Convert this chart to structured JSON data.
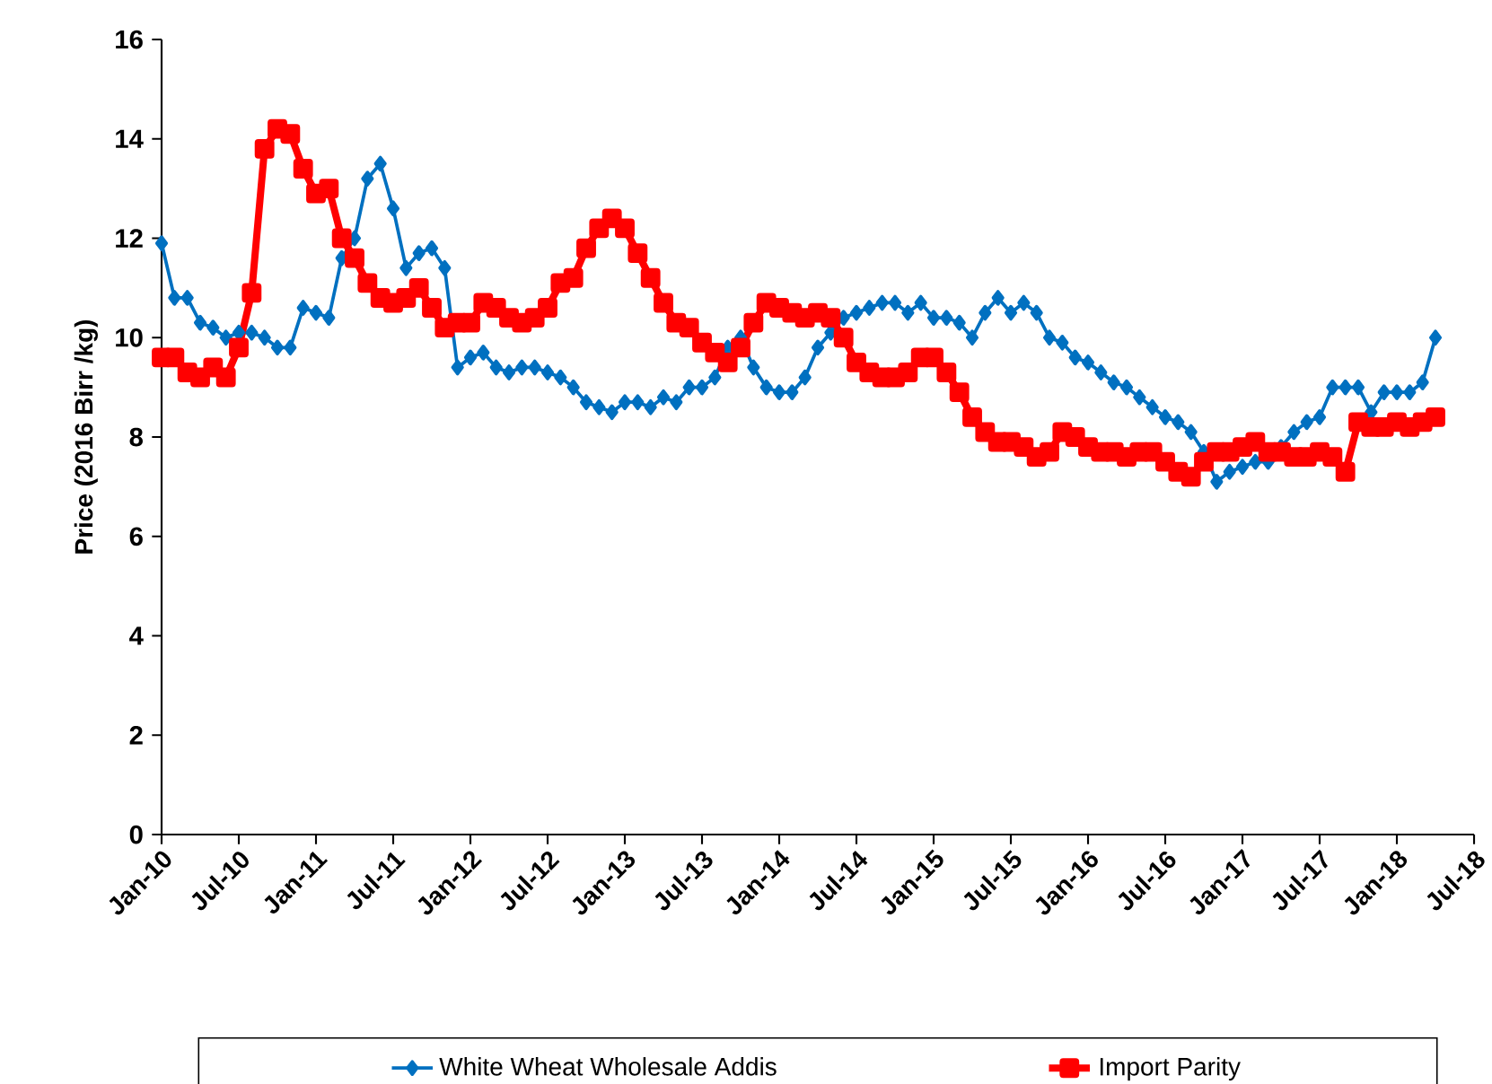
{
  "chart_data": {
    "type": "line",
    "ylabel": "Price (2016 Birr /kg)",
    "x": [
      "2010-01",
      "2010-02",
      "2010-03",
      "2010-04",
      "2010-05",
      "2010-06",
      "2010-07",
      "2010-08",
      "2010-09",
      "2010-10",
      "2010-11",
      "2010-12",
      "2011-01",
      "2011-02",
      "2011-03",
      "2011-04",
      "2011-05",
      "2011-06",
      "2011-07",
      "2011-08",
      "2011-09",
      "2011-10",
      "2011-11",
      "2011-12",
      "2012-01",
      "2012-02",
      "2012-03",
      "2012-04",
      "2012-05",
      "2012-06",
      "2012-07",
      "2012-08",
      "2012-09",
      "2012-10",
      "2012-11",
      "2012-12",
      "2013-01",
      "2013-02",
      "2013-03",
      "2013-04",
      "2013-05",
      "2013-06",
      "2013-07",
      "2013-08",
      "2013-09",
      "2013-10",
      "2013-11",
      "2013-12",
      "2014-01",
      "2014-02",
      "2014-03",
      "2014-04",
      "2014-05",
      "2014-06",
      "2014-07",
      "2014-08",
      "2014-09",
      "2014-10",
      "2014-11",
      "2014-12",
      "2015-01",
      "2015-02",
      "2015-03",
      "2015-04",
      "2015-05",
      "2015-06",
      "2015-07",
      "2015-08",
      "2015-09",
      "2015-10",
      "2015-11",
      "2015-12",
      "2016-01",
      "2016-02",
      "2016-03",
      "2016-04",
      "2016-05",
      "2016-06",
      "2016-07",
      "2016-08",
      "2016-09",
      "2016-10",
      "2016-11",
      "2016-12",
      "2017-01",
      "2017-02",
      "2017-03",
      "2017-04",
      "2017-05",
      "2017-06",
      "2017-07",
      "2017-08",
      "2017-09",
      "2017-10",
      "2017-11",
      "2017-12",
      "2018-01",
      "2018-02",
      "2018-03",
      "2018-04"
    ],
    "series": [
      {
        "name": "White Wheat Wholesale Addis",
        "color": "#0070c0",
        "marker": "diamond",
        "values": [
          11.9,
          10.8,
          10.8,
          10.3,
          10.2,
          10.0,
          10.1,
          10.1,
          10.0,
          9.8,
          9.8,
          10.6,
          10.5,
          10.4,
          11.6,
          12.0,
          13.2,
          13.5,
          12.6,
          11.4,
          11.7,
          11.8,
          11.4,
          9.4,
          9.6,
          9.7,
          9.4,
          9.3,
          9.4,
          9.4,
          9.3,
          9.2,
          9.0,
          8.7,
          8.6,
          8.5,
          8.7,
          8.7,
          8.6,
          8.8,
          8.7,
          9.0,
          9.0,
          9.2,
          9.8,
          10.0,
          9.4,
          9.0,
          8.9,
          8.9,
          9.2,
          9.8,
          10.1,
          10.4,
          10.5,
          10.6,
          10.7,
          10.7,
          10.5,
          10.7,
          10.4,
          10.4,
          10.3,
          10.0,
          10.5,
          10.8,
          10.5,
          10.7,
          10.5,
          10.0,
          9.9,
          9.6,
          9.5,
          9.3,
          9.1,
          9.0,
          8.8,
          8.6,
          8.4,
          8.3,
          8.1,
          7.7,
          7.1,
          7.3,
          7.4,
          7.5,
          7.5,
          7.8,
          8.1,
          8.3,
          8.4,
          9.0,
          9.0,
          9.0,
          8.5,
          8.9,
          8.9,
          8.9,
          9.1,
          10.0
        ]
      },
      {
        "name": "Import Parity",
        "color": "#ff0000",
        "marker": "square",
        "values": [
          9.6,
          9.6,
          9.3,
          9.2,
          9.4,
          9.2,
          9.8,
          10.9,
          13.8,
          14.2,
          14.1,
          13.4,
          12.9,
          13.0,
          12.0,
          11.6,
          11.1,
          10.8,
          10.7,
          10.8,
          11.0,
          10.6,
          10.2,
          10.3,
          10.3,
          10.7,
          10.6,
          10.4,
          10.3,
          10.4,
          10.6,
          11.1,
          11.2,
          11.8,
          12.2,
          12.4,
          12.2,
          11.7,
          11.2,
          10.7,
          10.3,
          10.2,
          9.9,
          9.7,
          9.5,
          9.8,
          10.3,
          10.7,
          10.6,
          10.5,
          10.4,
          10.5,
          10.4,
          10.0,
          9.5,
          9.3,
          9.2,
          9.2,
          9.3,
          9.6,
          9.6,
          9.3,
          8.9,
          8.4,
          8.1,
          7.9,
          7.9,
          7.8,
          7.6,
          7.7,
          8.1,
          8.0,
          7.8,
          7.7,
          7.7,
          7.6,
          7.7,
          7.7,
          7.5,
          7.3,
          7.2,
          7.5,
          7.7,
          7.7,
          7.8,
          7.9,
          7.7,
          7.7,
          7.6,
          7.6,
          7.7,
          7.6,
          7.3,
          8.3,
          8.2,
          8.2,
          8.3,
          8.2,
          8.3,
          8.4
        ]
      }
    ],
    "xlim": [
      "2010-01",
      "2018-07"
    ],
    "xticks": [
      {
        "value": "2010-01",
        "label": "Jan-10"
      },
      {
        "value": "2010-07",
        "label": "Jul-10"
      },
      {
        "value": "2011-01",
        "label": "Jan-11"
      },
      {
        "value": "2011-07",
        "label": "Jul-11"
      },
      {
        "value": "2012-01",
        "label": "Jan-12"
      },
      {
        "value": "2012-07",
        "label": "Jul-12"
      },
      {
        "value": "2013-01",
        "label": "Jan-13"
      },
      {
        "value": "2013-07",
        "label": "Jul-13"
      },
      {
        "value": "2014-01",
        "label": "Jan-14"
      },
      {
        "value": "2014-07",
        "label": "Jul-14"
      },
      {
        "value": "2015-01",
        "label": "Jan-15"
      },
      {
        "value": "2015-07",
        "label": "Jul-15"
      },
      {
        "value": "2016-01",
        "label": "Jan-16"
      },
      {
        "value": "2016-07",
        "label": "Jul-16"
      },
      {
        "value": "2017-01",
        "label": "Jan-17"
      },
      {
        "value": "2017-07",
        "label": "Jul-17"
      },
      {
        "value": "2018-01",
        "label": "Jan-18"
      },
      {
        "value": "2018-07",
        "label": "Jul-18"
      }
    ],
    "ylim": [
      0,
      16
    ],
    "yticks": [
      0,
      2,
      4,
      6,
      8,
      10,
      12,
      14,
      16
    ],
    "legend": "bottom"
  }
}
